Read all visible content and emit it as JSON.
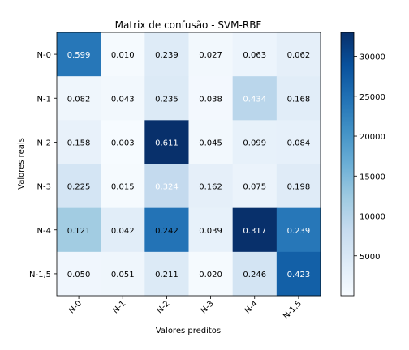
{
  "chart_data": {
    "type": "heatmap",
    "title": "Matrix de confusão - SVM-RBF",
    "xlabel": "Valores preditos",
    "ylabel": "Valores reais",
    "x_categories": [
      "N-0",
      "N-1",
      "N-2",
      "N-3",
      "N-4",
      "N-1,5"
    ],
    "y_categories": [
      "N-0",
      "N-1",
      "N-2",
      "N-3",
      "N-4",
      "N-1,5"
    ],
    "cell_labels": [
      [
        "0.599",
        "0.010",
        "0.239",
        "0.027",
        "0.063",
        "0.062"
      ],
      [
        "0.082",
        "0.043",
        "0.235",
        "0.038",
        "0.434",
        "0.168"
      ],
      [
        "0.158",
        "0.003",
        "0.611",
        "0.045",
        "0.099",
        "0.084"
      ],
      [
        "0.225",
        "0.015",
        "0.324",
        "0.162",
        "0.075",
        "0.198"
      ],
      [
        "0.121",
        "0.042",
        "0.242",
        "0.039",
        "0.317",
        "0.239"
      ],
      [
        "0.050",
        "0.051",
        "0.211",
        "0.020",
        "0.246",
        "0.423"
      ]
    ],
    "color_values": [
      [
        24000,
        300,
        4200,
        900,
        1800,
        3000
      ],
      [
        1400,
        800,
        4500,
        700,
        9500,
        3600
      ],
      [
        2500,
        120,
        33000,
        900,
        2700,
        2800
      ],
      [
        5800,
        350,
        8500,
        3000,
        2000,
        4000
      ],
      [
        12000,
        3600,
        24500,
        2600,
        33000,
        24000
      ],
      [
        1200,
        1400,
        4500,
        300,
        6000,
        27000
      ]
    ],
    "text_color": [
      [
        "white",
        "black",
        "black",
        "black",
        "black",
        "black"
      ],
      [
        "black",
        "black",
        "black",
        "black",
        "white",
        "black"
      ],
      [
        "black",
        "black",
        "white",
        "black",
        "black",
        "black"
      ],
      [
        "black",
        "black",
        "white",
        "black",
        "black",
        "black"
      ],
      [
        "black",
        "black",
        "black",
        "black",
        "white",
        "white"
      ],
      [
        "black",
        "black",
        "black",
        "black",
        "black",
        "white"
      ]
    ],
    "colorbar": {
      "range": [
        0,
        33000
      ],
      "ticks": [
        5000,
        10000,
        15000,
        20000,
        25000,
        30000
      ],
      "tick_labels": [
        "5000",
        "10000",
        "15000",
        "20000",
        "25000",
        "30000"
      ]
    },
    "colormap": "Blues",
    "colormap_stops": [
      "#f7fbff",
      "#deebf7",
      "#c6dbef",
      "#9ecae1",
      "#6baed6",
      "#4292c6",
      "#2171b5",
      "#08519c",
      "#08306b"
    ]
  }
}
